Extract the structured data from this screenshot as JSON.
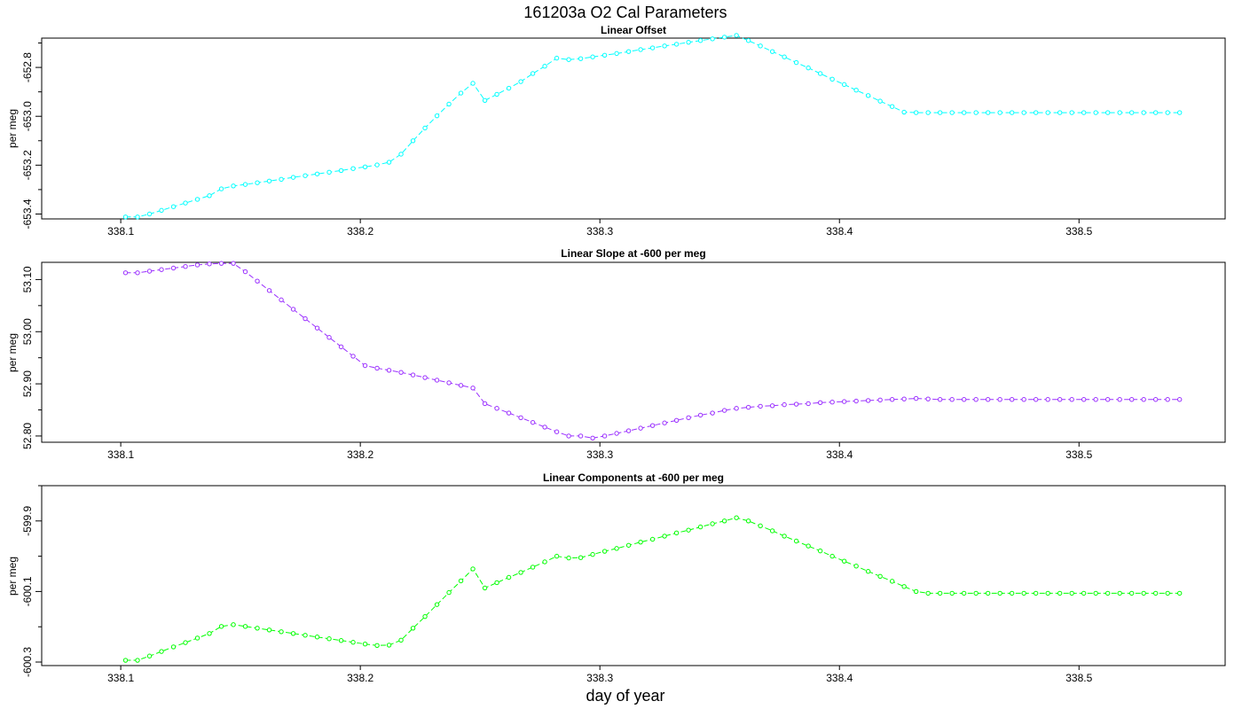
{
  "figure": {
    "title": "161203a   O2 Cal Parameters",
    "xlabel": "day of year"
  },
  "chart_data": [
    {
      "type": "line",
      "title": "Linear Offset",
      "ylabel": "per meg",
      "color": "#00ffff",
      "xlim": [
        338.067,
        338.561
      ],
      "ylim": [
        -653.42,
        -652.68
      ],
      "xticks": [
        338.1,
        338.2,
        338.3,
        338.4,
        338.5
      ],
      "xtick_labels": [
        "338.1",
        "338.2",
        "338.3",
        "338.4",
        "338.5"
      ],
      "yticks": [
        -653.4,
        -653.2,
        -653.0,
        -652.8
      ],
      "ytick_labels": [
        "-653.4",
        "-653.2",
        "-653.0",
        "-652.8"
      ],
      "yminor_ticks": [
        -653.3,
        -653.1,
        -652.9,
        -652.7
      ],
      "x": [
        338.102,
        338.107,
        338.112,
        338.117,
        338.122,
        338.127,
        338.132,
        338.137,
        338.142,
        338.147,
        338.152,
        338.157,
        338.162,
        338.167,
        338.172,
        338.177,
        338.182,
        338.187,
        338.192,
        338.197,
        338.202,
        338.207,
        338.212,
        338.217,
        338.222,
        338.227,
        338.232,
        338.237,
        338.242,
        338.247,
        338.252,
        338.257,
        338.262,
        338.267,
        338.272,
        338.277,
        338.282,
        338.287,
        338.292,
        338.297,
        338.302,
        338.307,
        338.312,
        338.317,
        338.322,
        338.327,
        338.332,
        338.337,
        338.342,
        338.347,
        338.352,
        338.357,
        338.362,
        338.367,
        338.372,
        338.377,
        338.382,
        338.387,
        338.392,
        338.397,
        338.402,
        338.407,
        338.412,
        338.417,
        338.422,
        338.427,
        338.432,
        338.437,
        338.442,
        338.447,
        338.452,
        338.457,
        338.462,
        338.467,
        338.472,
        338.477,
        338.482,
        338.487,
        338.492,
        338.497,
        338.502,
        338.507,
        338.512,
        338.517,
        338.522,
        338.527,
        338.532,
        338.537,
        338.542
      ],
      "y": [
        -653.412,
        -653.412,
        -653.4,
        -653.385,
        -653.37,
        -653.355,
        -653.34,
        -653.325,
        -653.297,
        -653.285,
        -653.279,
        -653.272,
        -653.265,
        -653.258,
        -653.25,
        -653.243,
        -653.236,
        -653.229,
        -653.222,
        -653.214,
        -653.207,
        -653.199,
        -653.188,
        -653.155,
        -653.1,
        -653.048,
        -652.998,
        -652.95,
        -652.905,
        -652.865,
        -652.935,
        -652.91,
        -652.885,
        -652.858,
        -652.825,
        -652.795,
        -652.762,
        -652.768,
        -652.764,
        -652.757,
        -652.75,
        -652.743,
        -652.735,
        -652.727,
        -652.72,
        -652.712,
        -652.705,
        -652.697,
        -652.69,
        -652.683,
        -652.676,
        -652.669,
        -652.69,
        -652.712,
        -652.735,
        -652.757,
        -652.78,
        -652.802,
        -652.825,
        -652.848,
        -652.87,
        -652.893,
        -652.915,
        -652.938,
        -652.96,
        -652.983,
        -652.985,
        -652.985,
        -652.985,
        -652.985,
        -652.985,
        -652.985,
        -652.985,
        -652.985,
        -652.985,
        -652.985,
        -652.985,
        -652.985,
        -652.985,
        -652.985,
        -652.985,
        -652.985,
        -652.985,
        -652.985,
        -652.985,
        -652.985,
        -652.985,
        -652.985,
        -652.985
      ]
    },
    {
      "type": "line",
      "title": "Linear Slope at -600 per meg",
      "ylabel": "per meg",
      "color": "#9b30ff",
      "xlim": [
        338.067,
        338.561
      ],
      "ylim": [
        52.788,
        53.133
      ],
      "xticks": [
        338.1,
        338.2,
        338.3,
        338.4,
        338.5
      ],
      "xtick_labels": [
        "338.1",
        "338.2",
        "338.3",
        "338.4",
        "338.5"
      ],
      "yticks": [
        52.8,
        52.9,
        53.0,
        53.1
      ],
      "ytick_labels": [
        "52.80",
        "52.90",
        "53.00",
        "53.10"
      ],
      "yminor_ticks": [
        52.85,
        52.95,
        53.05
      ],
      "x": [
        338.102,
        338.107,
        338.112,
        338.117,
        338.122,
        338.127,
        338.132,
        338.137,
        338.142,
        338.147,
        338.152,
        338.157,
        338.162,
        338.167,
        338.172,
        338.177,
        338.182,
        338.187,
        338.192,
        338.197,
        338.202,
        338.207,
        338.212,
        338.217,
        338.222,
        338.227,
        338.232,
        338.237,
        338.242,
        338.247,
        338.252,
        338.257,
        338.262,
        338.267,
        338.272,
        338.277,
        338.282,
        338.287,
        338.292,
        338.297,
        338.302,
        338.307,
        338.312,
        338.317,
        338.322,
        338.327,
        338.332,
        338.337,
        338.342,
        338.347,
        338.352,
        338.357,
        338.362,
        338.367,
        338.372,
        338.377,
        338.382,
        338.387,
        338.392,
        338.397,
        338.402,
        338.407,
        338.412,
        338.417,
        338.422,
        338.427,
        338.432,
        338.437,
        338.442,
        338.447,
        338.452,
        338.457,
        338.462,
        338.467,
        338.472,
        338.477,
        338.482,
        338.487,
        338.492,
        338.497,
        338.502,
        338.507,
        338.512,
        338.517,
        338.522,
        338.527,
        338.532,
        338.537,
        338.542
      ],
      "y": [
        53.113,
        53.113,
        53.116,
        53.119,
        53.122,
        53.125,
        53.128,
        53.13,
        53.131,
        53.131,
        53.115,
        53.097,
        53.079,
        53.061,
        53.043,
        53.025,
        53.007,
        52.989,
        52.971,
        52.953,
        52.935,
        52.93,
        52.926,
        52.922,
        52.917,
        52.912,
        52.907,
        52.902,
        52.897,
        52.892,
        52.862,
        52.853,
        52.844,
        52.835,
        52.826,
        52.817,
        52.808,
        52.8,
        52.8,
        52.796,
        52.8,
        52.805,
        52.81,
        52.815,
        52.82,
        52.825,
        52.83,
        52.835,
        52.84,
        52.844,
        52.849,
        52.853,
        52.855,
        52.857,
        52.858,
        52.86,
        52.861,
        52.862,
        52.864,
        52.865,
        52.866,
        52.867,
        52.868,
        52.869,
        52.87,
        52.871,
        52.872,
        52.871,
        52.87,
        52.87,
        52.87,
        52.87,
        52.87,
        52.87,
        52.87,
        52.87,
        52.87,
        52.87,
        52.87,
        52.87,
        52.87,
        52.87,
        52.87,
        52.87,
        52.87,
        52.87,
        52.87,
        52.87,
        52.87
      ]
    },
    {
      "type": "line",
      "title": "Linear Components at -600 per meg",
      "ylabel": "per meg",
      "color": "#00ff00",
      "xlim": [
        338.067,
        338.561
      ],
      "ylim": [
        -600.31,
        -599.8
      ],
      "xticks": [
        338.1,
        338.2,
        338.3,
        338.4,
        338.5
      ],
      "xtick_labels": [
        "338.1",
        "338.2",
        "338.3",
        "338.4",
        "338.5"
      ],
      "yticks": [
        -600.3,
        -600.1,
        -599.9
      ],
      "ytick_labels": [
        "-600.3",
        "-600.1",
        "-599.9"
      ],
      "yminor_ticks": [
        -600.2,
        -600.0,
        -599.8
      ],
      "x": [
        338.102,
        338.107,
        338.112,
        338.117,
        338.122,
        338.127,
        338.132,
        338.137,
        338.142,
        338.147,
        338.152,
        338.157,
        338.162,
        338.167,
        338.172,
        338.177,
        338.182,
        338.187,
        338.192,
        338.197,
        338.202,
        338.207,
        338.212,
        338.217,
        338.222,
        338.227,
        338.232,
        338.237,
        338.242,
        338.247,
        338.252,
        338.257,
        338.262,
        338.267,
        338.272,
        338.277,
        338.282,
        338.287,
        338.292,
        338.297,
        338.302,
        338.307,
        338.312,
        338.317,
        338.322,
        338.327,
        338.332,
        338.337,
        338.342,
        338.347,
        338.352,
        338.357,
        338.362,
        338.367,
        338.372,
        338.377,
        338.382,
        338.387,
        338.392,
        338.397,
        338.402,
        338.407,
        338.412,
        338.417,
        338.422,
        338.427,
        338.432,
        338.437,
        338.442,
        338.447,
        338.452,
        338.457,
        338.462,
        338.467,
        338.472,
        338.477,
        338.482,
        338.487,
        338.492,
        338.497,
        338.502,
        338.507,
        338.512,
        338.517,
        338.522,
        338.527,
        338.532,
        338.537,
        338.542
      ],
      "y": [
        -600.295,
        -600.295,
        -600.283,
        -600.27,
        -600.257,
        -600.245,
        -600.232,
        -600.219,
        -600.199,
        -600.194,
        -600.199,
        -600.204,
        -600.209,
        -600.214,
        -600.219,
        -600.224,
        -600.229,
        -600.234,
        -600.239,
        -600.244,
        -600.249,
        -600.253,
        -600.252,
        -600.238,
        -600.204,
        -600.171,
        -600.137,
        -600.103,
        -600.07,
        -600.036,
        -600.09,
        -600.075,
        -600.06,
        -600.046,
        -600.031,
        -600.016,
        -600.0,
        -600.005,
        -600.004,
        -599.995,
        -599.986,
        -599.978,
        -599.969,
        -599.96,
        -599.952,
        -599.943,
        -599.934,
        -599.926,
        -599.917,
        -599.908,
        -599.9,
        -599.891,
        -599.9,
        -599.914,
        -599.928,
        -599.943,
        -599.957,
        -599.971,
        -599.985,
        -600.0,
        -600.014,
        -600.028,
        -600.043,
        -600.057,
        -600.071,
        -600.086,
        -600.1,
        -600.105,
        -600.105,
        -600.105,
        -600.105,
        -600.105,
        -600.105,
        -600.105,
        -600.105,
        -600.105,
        -600.105,
        -600.105,
        -600.105,
        -600.105,
        -600.105,
        -600.105,
        -600.105,
        -600.105,
        -600.105,
        -600.105,
        -600.105,
        -600.105,
        -600.105
      ]
    }
  ]
}
